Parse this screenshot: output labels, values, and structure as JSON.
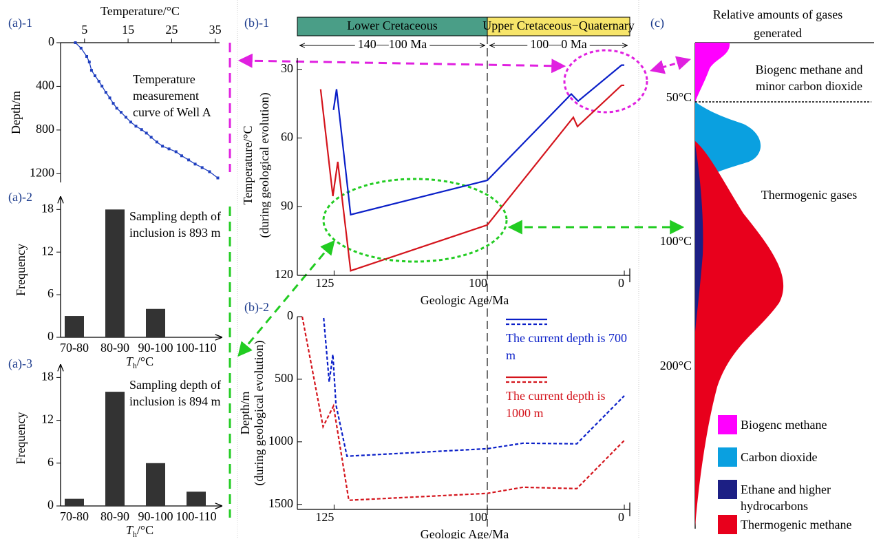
{
  "chart_data": [
    {
      "type": "line",
      "label": "(a)-1",
      "x_label": "Temperature/°C",
      "y_label": "Depth/m",
      "annotation": "Temperature measurement curve of Well A",
      "x": [
        2.9,
        4.2,
        5.5,
        6.1,
        6.6,
        7.4,
        8.3,
        9.0,
        9.9,
        10.8,
        11.6,
        12.4,
        13.4,
        14.5,
        15.6,
        16.8,
        18.1,
        19.2,
        20.3,
        21.6,
        22.9,
        24.4,
        26.0,
        27.3,
        28.9,
        30.4,
        32.0,
        33.7,
        35.6
      ],
      "series": [
        {
          "color": "#1f3fbf",
          "values": [
            0,
            50,
            126,
            177,
            253,
            303,
            354,
            398,
            455,
            506,
            556,
            600,
            638,
            683,
            727,
            765,
            796,
            828,
            866,
            910,
            948,
            973,
            999,
            1036,
            1074,
            1112,
            1144,
            1182,
            1239
          ]
        }
      ],
      "marker": "square",
      "x_axis_position": "top",
      "y_inverted": true,
      "xlim": [
        -0.5,
        36
      ],
      "xticks": [
        5,
        15,
        25,
        35
      ],
      "ylim": [
        0,
        1280
      ],
      "yticks": [
        0,
        400,
        800,
        1200
      ]
    },
    {
      "type": "bar",
      "label": "(a)-2",
      "x_label": [
        "T",
        "h",
        "/°C"
      ],
      "y_label": "Frequency",
      "annotation": "Sampling depth of inclusion is 893 m",
      "categories": [
        "70-80",
        "80-90",
        "90-100",
        "100-110"
      ],
      "values": [
        3,
        18,
        4,
        0
      ],
      "color": "#333333",
      "ylim": [
        0,
        19
      ],
      "yticks": [
        0,
        6,
        12,
        18
      ]
    },
    {
      "type": "bar",
      "label": "(a)-3",
      "x_label": [
        "T",
        "h",
        "/°C"
      ],
      "y_label": "Frequency",
      "annotation": "Sampling depth of inclusion is 894 m",
      "categories": [
        "70-80",
        "80-90",
        "90-100",
        "100-110"
      ],
      "values": [
        1,
        16,
        6,
        2
      ],
      "color": "#333333",
      "ylim": [
        0,
        19
      ],
      "yticks": [
        0,
        6,
        12,
        18
      ]
    },
    {
      "type": "line",
      "label": "(b)-1",
      "x_label": "Geologic Age/Ma",
      "y_label": [
        "Temperature/°C",
        "(during geological evolution)"
      ],
      "periods": [
        {
          "label": "Lower Cretaceous",
          "color": "#4a9e87",
          "span": "140—100 Ma"
        },
        {
          "label": "Upper Cretaceous−Quaternary",
          "color": "#f7e56a",
          "span": "100—0 Ma"
        }
      ],
      "xlim_segments": [
        [
          131,
          100
        ],
        [
          100,
          -4
        ]
      ],
      "xticks": [
        125,
        100,
        0
      ],
      "boundary": 100,
      "y_inverted": true,
      "ylim": [
        25,
        120
      ],
      "yticks": [
        30,
        60,
        90,
        120
      ],
      "series": [
        {
          "color": "#0a1fc8",
          "x": [
            125.1,
            124.6,
            122.3,
            100,
            38.7,
            33.7,
            2,
            0
          ],
          "values": [
            47.8,
            38.7,
            93.5,
            78.5,
            40.8,
            43.9,
            28.2,
            28.2
          ]
        },
        {
          "color": "#d4141c",
          "x": [
            127.2,
            125.2,
            124.4,
            122.3,
            100,
            37.2,
            34.2,
            2,
            0
          ],
          "values": [
            38.7,
            85.4,
            70.4,
            118,
            98,
            51,
            55,
            37,
            37
          ]
        }
      ]
    },
    {
      "type": "line",
      "label": "(b)-2",
      "x_label": "Geologic Age/Ma",
      "y_label": [
        "Depth/m",
        "(during geological evolution)"
      ],
      "xlim_segments": [
        [
          131,
          100
        ],
        [
          100,
          -4
        ]
      ],
      "xticks": [
        125,
        100,
        0
      ],
      "boundary": 100,
      "y_inverted": true,
      "ylim": [
        0,
        1540
      ],
      "yticks": [
        0,
        500,
        1000,
        1500
      ],
      "series": [
        {
          "name": "The current depth is 700 m",
          "color": "#0a1fc8",
          "line_style": "dashed",
          "x": [
            126.7,
            125.8,
            125.2,
            124.7,
            122.9,
            100,
            73.9,
            34.7,
            0
          ],
          "values": [
            11,
            522,
            302,
            703,
            1115,
            1055,
            1011,
            1016,
            632
          ]
        },
        {
          "name": "The current depth is 1000 m",
          "color": "#d4141c",
          "line_style": "dashed",
          "x": [
            130.2,
            126.8,
            125.1,
            122.6,
            100,
            73.9,
            34.7,
            0
          ],
          "values": [
            0,
            879,
            714,
            1467,
            1412,
            1363,
            1374,
            989
          ]
        }
      ]
    }
  ],
  "diagram": {
    "label": "(c)",
    "title": "Relative amounts of gases generated",
    "annotations": [
      "Biogenc methane and minor carbon dioxide",
      "Thermogenic gases"
    ],
    "temperature_labels": [
      "50°C",
      "100°C",
      "200°C"
    ],
    "legend": [
      {
        "label": "Biogenc methane",
        "color": "#ff00ff"
      },
      {
        "label": "Carbon dioxide",
        "color": "#0aa0e0"
      },
      {
        "label": "Ethane and higher hydrocarbons",
        "color": "#1c1f84"
      },
      {
        "label": "Thermogenic methane",
        "color": "#e8001c"
      }
    ]
  }
}
